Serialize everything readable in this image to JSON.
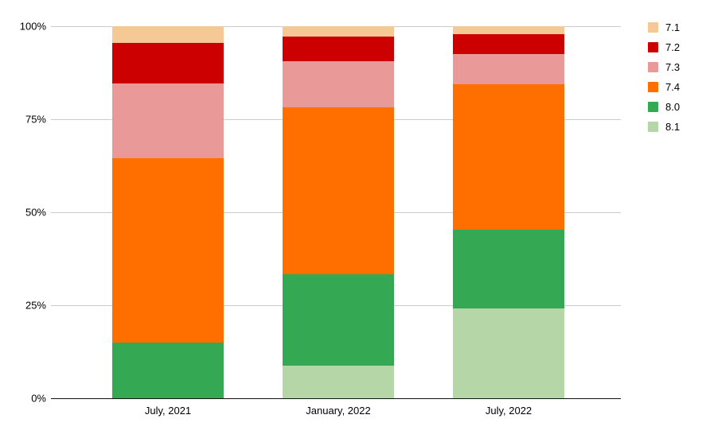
{
  "chart_data": {
    "type": "bar",
    "variant": "stacked-100-percent",
    "title": "",
    "xlabel": "",
    "ylabel": "",
    "categories": [
      "July, 2021",
      "January, 2022",
      "July, 2022"
    ],
    "series": [
      {
        "name": "7.1",
        "color": "#F6C896",
        "values": [
          4.4,
          2.8,
          2.2
        ]
      },
      {
        "name": "7.2",
        "color": "#CC0000",
        "values": [
          11.0,
          6.6,
          5.2
        ]
      },
      {
        "name": "7.3",
        "color": "#EA9999",
        "values": [
          20.1,
          12.4,
          8.2
        ]
      },
      {
        "name": "7.4",
        "color": "#FF6F00",
        "values": [
          49.5,
          44.8,
          39.2
        ]
      },
      {
        "name": "8.0",
        "color": "#34A853",
        "values": [
          15.0,
          24.6,
          21.0
        ]
      },
      {
        "name": "8.1",
        "color": "#B5D6A6",
        "values": [
          0.0,
          8.8,
          24.2
        ]
      }
    ],
    "stack_order_bottom_to_top": [
      "8.1",
      "8.0",
      "7.4",
      "7.3",
      "7.2",
      "7.1"
    ],
    "ylim": [
      0,
      100
    ],
    "y_tick_values": [
      0,
      25,
      50,
      75,
      100
    ],
    "y_tick_labels": [
      "0%",
      "25%",
      "50%",
      "75%",
      "100%"
    ],
    "grid": true,
    "legend_position": "right",
    "background_color": "#ffffff",
    "gridline_color": "#cccccc",
    "axis_line_color": "#111111"
  }
}
